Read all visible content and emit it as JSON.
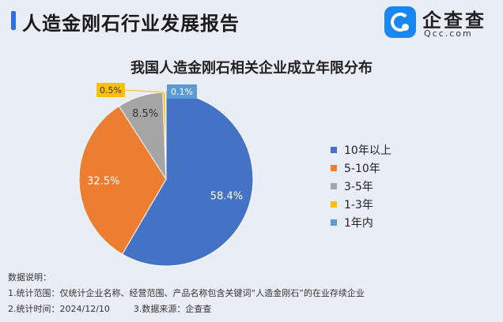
{
  "header": {
    "title": "人造金刚石行业发展报告",
    "logo_name": "企查查",
    "logo_domain": "Qcc.com",
    "accent_color": "#2f6fe0",
    "logo_color": "#1a86f0"
  },
  "chart_data": {
    "type": "pie",
    "title": "我国人造金刚石相关企业成立年限分布",
    "categories": [
      "10年以上",
      "5-10年",
      "3-5年",
      "1-3年",
      "1年内"
    ],
    "values": [
      58.4,
      32.5,
      8.5,
      0.5,
      0.1
    ],
    "labels": [
      "58.4%",
      "32.5%",
      "8.5%",
      "0.5%",
      "0.1%"
    ],
    "colors": [
      "#4472c4",
      "#ed7d31",
      "#a5a5a5",
      "#ffc000",
      "#5b9bd5"
    ],
    "legend_position": "right"
  },
  "notes": {
    "heading": "数据说明：",
    "line1": "1.统计范围：仅统计企业名称、经营范围、产品名称包含关键词“人造金刚石”的在业存续企业",
    "line2a": "2.统计时间：2024/12/10",
    "line2b": "3.数据来源：企查查"
  }
}
